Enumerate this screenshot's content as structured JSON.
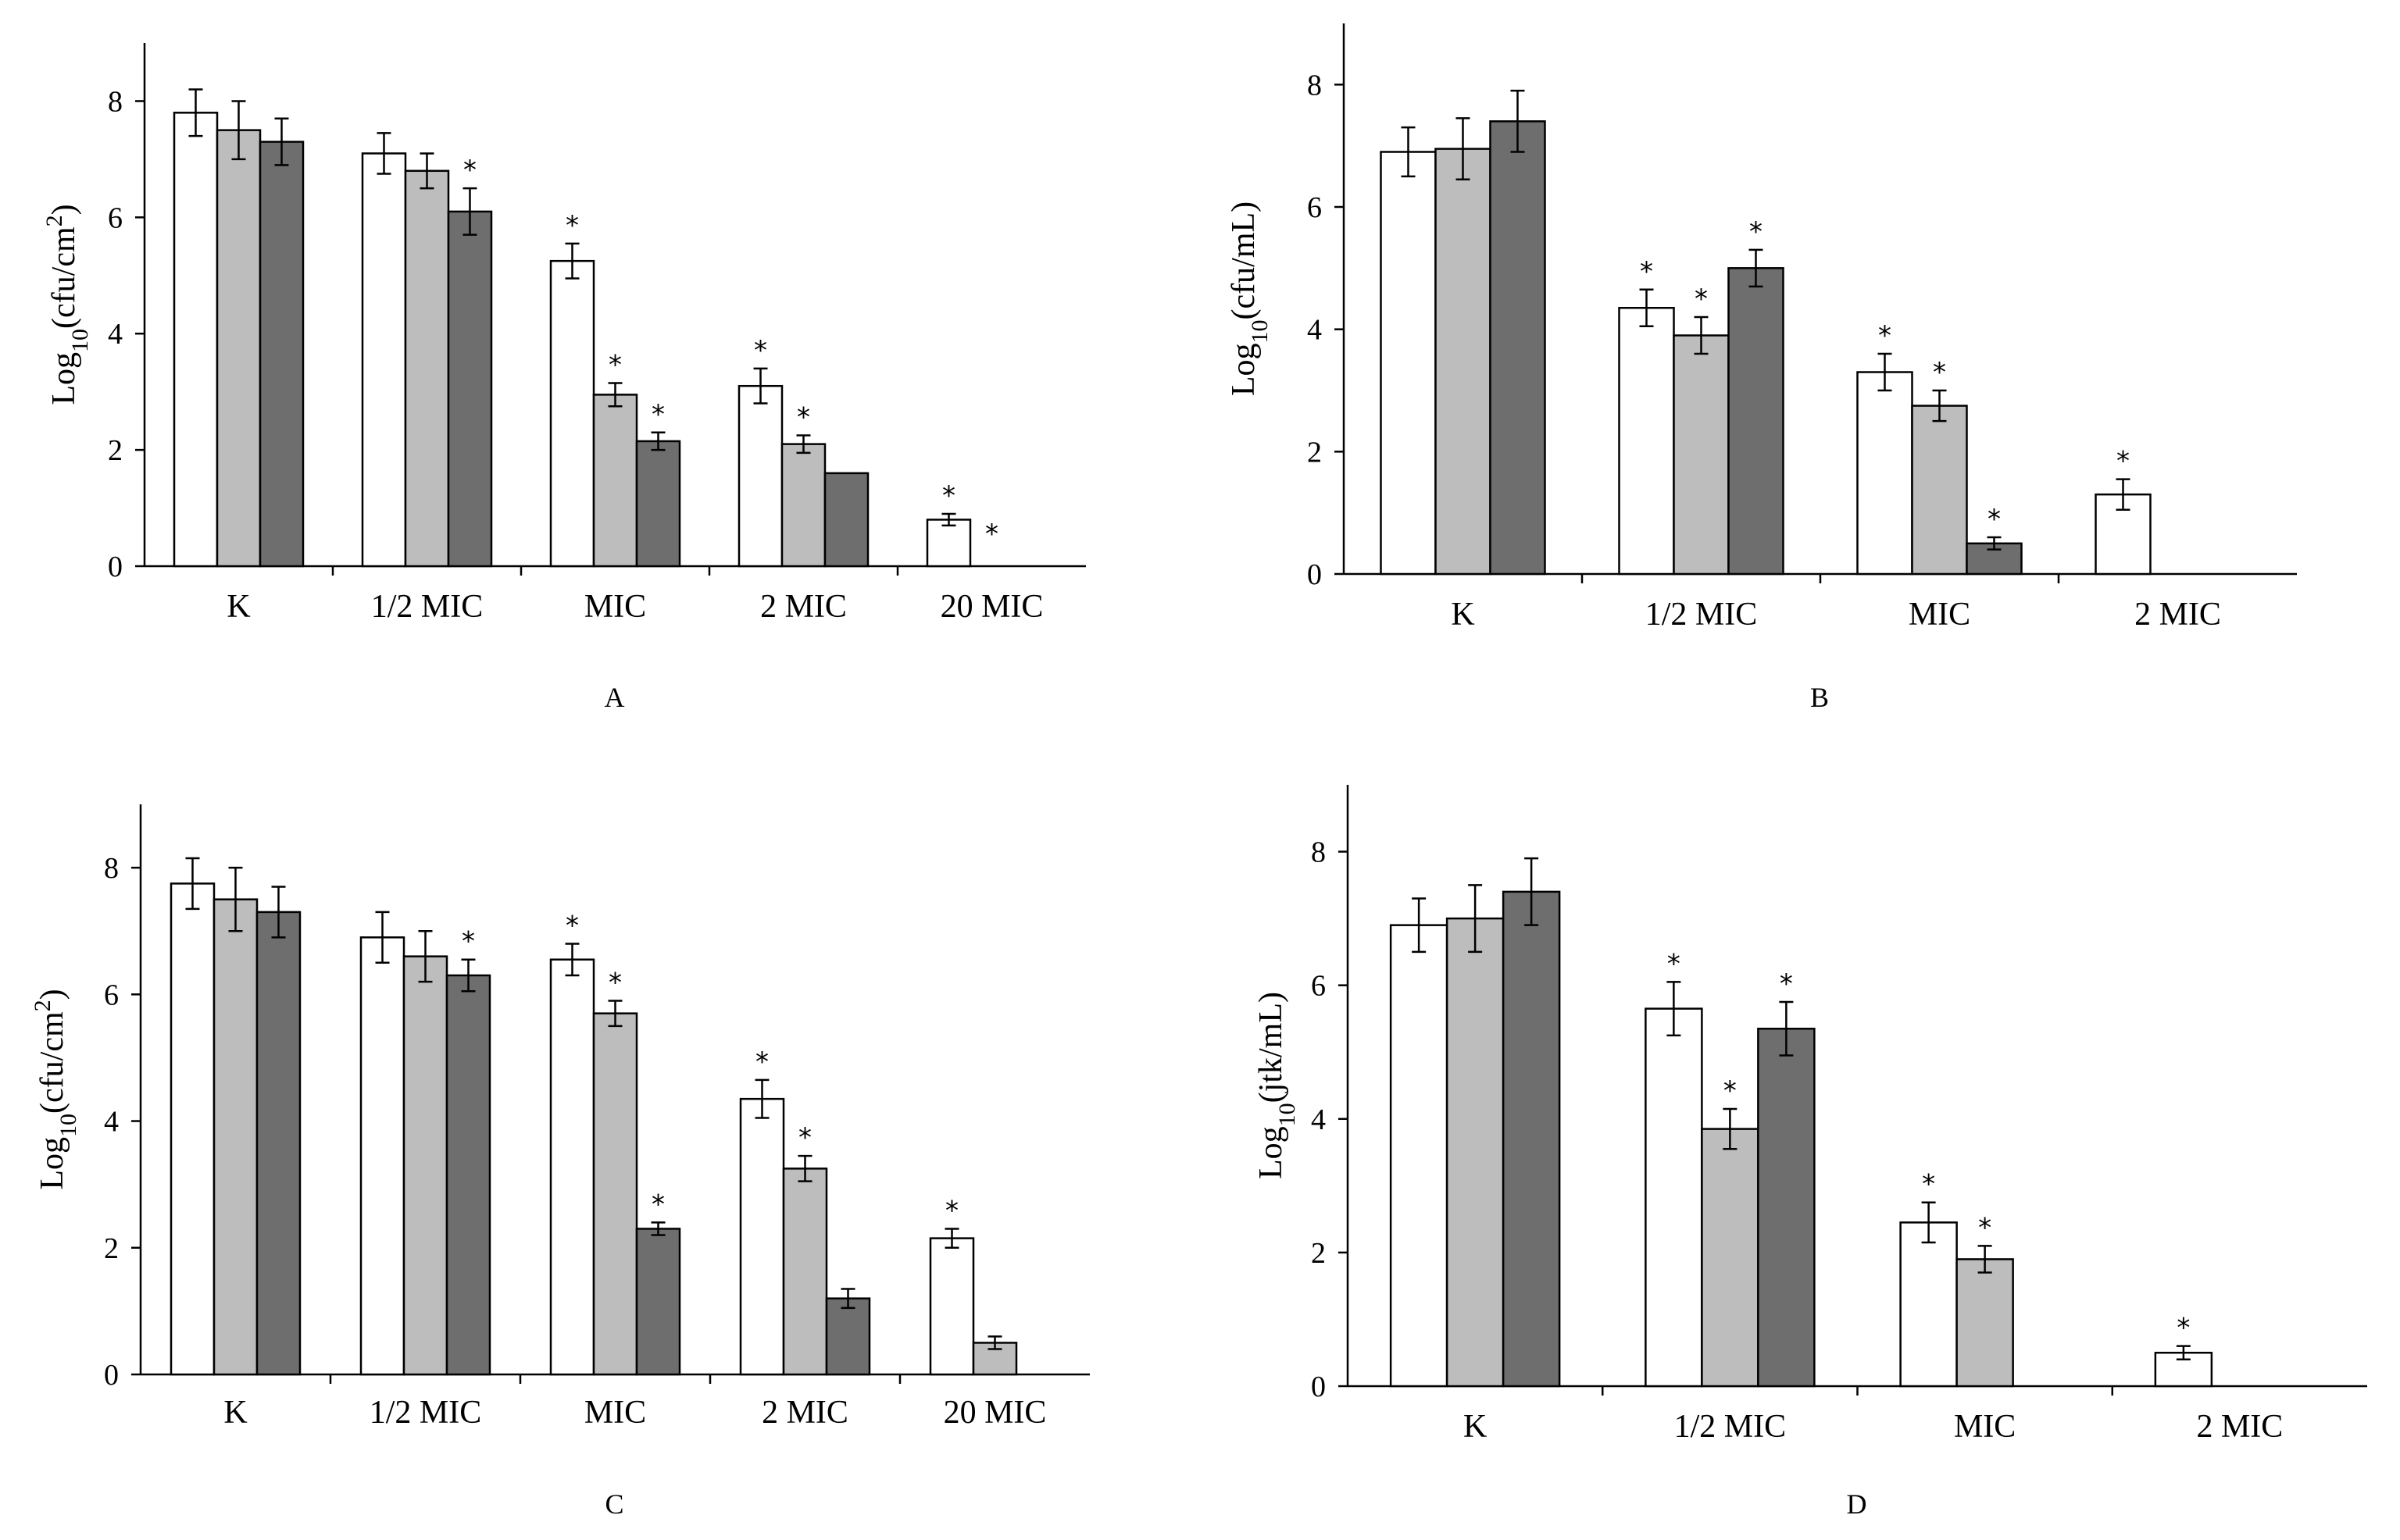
{
  "figure": {
    "type": "multi-panel bar charts"
  },
  "chart_data": [
    {
      "type": "bar",
      "panel_label": "A",
      "title": "",
      "ylabel_base": "Log",
      "ylabel_sub": "10",
      "ylabel_unit": "(cfu/cm",
      "ylabel_sup": "2",
      "ylabel_end": ")",
      "xlabel": "",
      "ylim": [
        0,
        9
      ],
      "yticks": [
        0,
        2,
        4,
        6,
        8
      ],
      "categories": [
        "K",
        "1/2 MIC",
        "MIC",
        "2 MIC",
        "20 MIC"
      ],
      "series": [
        {
          "name": "series 1",
          "color": "#ffffff",
          "values": [
            7.8,
            7.1,
            5.25,
            3.1,
            0.8
          ],
          "errors": [
            0.4,
            0.35,
            0.3,
            0.3,
            0.1
          ],
          "significant": [
            false,
            false,
            true,
            true,
            true
          ]
        },
        {
          "name": "series 2",
          "color": "#bdbdbd",
          "values": [
            7.5,
            6.8,
            2.95,
            2.1,
            0
          ],
          "errors": [
            0.5,
            0.3,
            0.2,
            0.15,
            0
          ],
          "significant": [
            false,
            false,
            true,
            true,
            true
          ]
        },
        {
          "name": "series 3",
          "color": "#6e6e6e",
          "values": [
            7.3,
            6.1,
            2.15,
            1.6,
            null
          ],
          "errors": [
            0.4,
            0.4,
            0.15,
            0,
            null
          ],
          "significant": [
            false,
            true,
            true,
            false,
            false
          ]
        }
      ]
    },
    {
      "type": "bar",
      "panel_label": "B",
      "title": "",
      "ylabel_base": "Log",
      "ylabel_sub": "10",
      "ylabel_unit": "(cfu/mL)",
      "ylabel_sup": "",
      "ylabel_end": "",
      "xlabel": "",
      "ylim": [
        0,
        9
      ],
      "yticks": [
        0,
        2,
        4,
        6,
        8
      ],
      "categories": [
        "K",
        "1/2 MIC",
        "MIC",
        "2 MIC"
      ],
      "series": [
        {
          "name": "series 1",
          "color": "#ffffff",
          "values": [
            6.9,
            4.35,
            3.3,
            1.3
          ],
          "errors": [
            0.4,
            0.3,
            0.3,
            0.25
          ],
          "significant": [
            false,
            true,
            true,
            true
          ]
        },
        {
          "name": "series 2",
          "color": "#bdbdbd",
          "values": [
            6.95,
            3.9,
            2.75,
            null
          ],
          "errors": [
            0.5,
            0.3,
            0.25,
            null
          ],
          "significant": [
            false,
            true,
            true,
            false
          ]
        },
        {
          "name": "series 3",
          "color": "#6e6e6e",
          "values": [
            7.4,
            5.0,
            0.5,
            null
          ],
          "errors": [
            0.5,
            0.3,
            0.1,
            null
          ],
          "significant": [
            false,
            true,
            true,
            false
          ]
        }
      ]
    },
    {
      "type": "bar",
      "panel_label": "C",
      "title": "",
      "ylabel_base": "Log",
      "ylabel_sub": "10",
      "ylabel_unit": "(cfu/cm",
      "ylabel_sup": "2",
      "ylabel_end": ")",
      "xlabel": "",
      "ylim": [
        0,
        9
      ],
      "yticks": [
        0,
        2,
        4,
        6,
        8
      ],
      "categories": [
        "K",
        "1/2 MIC",
        "MIC",
        "2 MIC",
        "20 MIC"
      ],
      "series": [
        {
          "name": "series 1",
          "color": "#ffffff",
          "values": [
            7.75,
            6.9,
            6.55,
            4.35,
            2.15
          ],
          "errors": [
            0.4,
            0.4,
            0.25,
            0.3,
            0.15
          ],
          "significant": [
            false,
            false,
            true,
            true,
            true
          ]
        },
        {
          "name": "series 2",
          "color": "#bdbdbd",
          "values": [
            7.5,
            6.6,
            5.7,
            3.25,
            0.5
          ],
          "errors": [
            0.5,
            0.4,
            0.2,
            0.2,
            0.1
          ],
          "significant": [
            false,
            false,
            true,
            true,
            false
          ]
        },
        {
          "name": "series 3",
          "color": "#6e6e6e",
          "values": [
            7.3,
            6.3,
            2.3,
            1.2,
            null
          ],
          "errors": [
            0.4,
            0.25,
            0.1,
            0.15,
            null
          ],
          "significant": [
            false,
            true,
            true,
            false,
            false
          ]
        }
      ]
    },
    {
      "type": "bar",
      "panel_label": "D",
      "title": "",
      "ylabel_base": "Log",
      "ylabel_sub": "10",
      "ylabel_unit": "(jtk/mL)",
      "ylabel_sup": "",
      "ylabel_end": "",
      "xlabel": "",
      "ylim": [
        0,
        9
      ],
      "yticks": [
        0,
        2,
        4,
        6,
        8
      ],
      "categories": [
        "K",
        "1/2 MIC",
        "MIC",
        "2 MIC"
      ],
      "series": [
        {
          "name": "series 1",
          "color": "#ffffff",
          "values": [
            6.9,
            5.65,
            2.45,
            0.5
          ],
          "errors": [
            0.4,
            0.4,
            0.3,
            0.1
          ],
          "significant": [
            false,
            true,
            true,
            true
          ]
        },
        {
          "name": "series 2",
          "color": "#bdbdbd",
          "values": [
            7.0,
            3.85,
            1.9,
            null
          ],
          "errors": [
            0.5,
            0.3,
            0.2,
            null
          ],
          "significant": [
            false,
            true,
            true,
            false
          ]
        },
        {
          "name": "series 3",
          "color": "#6e6e6e",
          "values": [
            7.4,
            5.35,
            null,
            null
          ],
          "errors": [
            0.5,
            0.4,
            null,
            null
          ],
          "significant": [
            false,
            true,
            false,
            false
          ]
        }
      ]
    }
  ],
  "significance_marker": "*"
}
